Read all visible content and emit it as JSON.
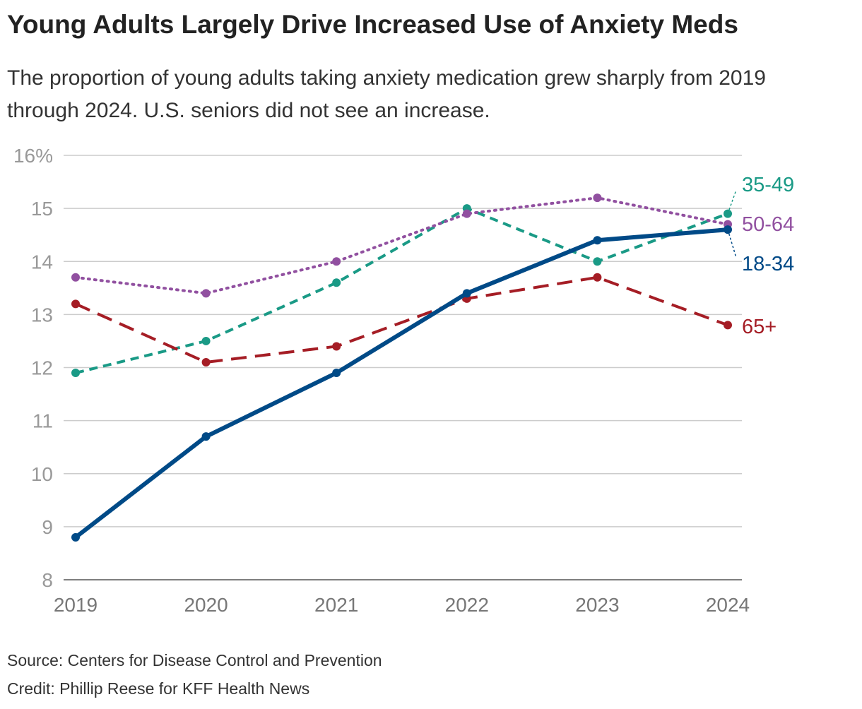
{
  "title": "Young Adults Largely Drive Increased Use of Anxiety Meds",
  "subtitle": "The proportion of young adults taking anxiety medication grew sharply from 2019 through 2024. U.S. seniors did not see an increase.",
  "source": "Source: Centers for Disease Control and Prevention",
  "credit": "Credit: Phillip Reese for KFF Health News",
  "chart_data": {
    "type": "line",
    "x": [
      "2019",
      "2020",
      "2021",
      "2022",
      "2023",
      "2024"
    ],
    "ylim": [
      8,
      16
    ],
    "yticks": [
      "8",
      "9",
      "10",
      "11",
      "12",
      "13",
      "14",
      "15",
      "16%"
    ],
    "grid": true,
    "legend": "direct labels at right end of lines",
    "series": [
      {
        "name": "35-49",
        "color": "#1a9a86",
        "style": "dashed",
        "values": [
          11.9,
          12.5,
          13.6,
          15.0,
          14.0,
          14.9
        ]
      },
      {
        "name": "50-64",
        "color": "#9150a0",
        "style": "dotted",
        "values": [
          13.7,
          13.4,
          14.0,
          14.9,
          15.2,
          14.7
        ]
      },
      {
        "name": "65+",
        "color": "#a51d25",
        "style": "long-dashed",
        "values": [
          13.2,
          12.1,
          12.4,
          13.3,
          13.7,
          12.8
        ]
      },
      {
        "name": "18-34",
        "color": "#004a87",
        "style": "solid",
        "values": [
          8.8,
          10.7,
          11.9,
          13.4,
          14.4,
          14.6
        ]
      }
    ]
  }
}
